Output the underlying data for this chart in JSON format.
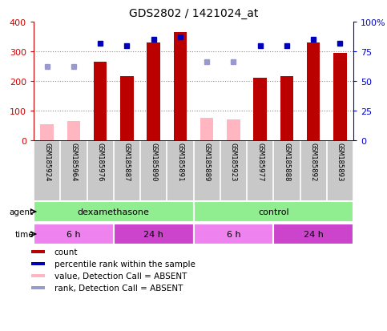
{
  "title": "GDS2802 / 1421024_at",
  "samples": [
    "GSM185924",
    "GSM185964",
    "GSM185976",
    "GSM185887",
    "GSM185890",
    "GSM185891",
    "GSM185889",
    "GSM185923",
    "GSM185977",
    "GSM185888",
    "GSM185892",
    "GSM185893"
  ],
  "count_values": [
    0,
    0,
    265,
    215,
    330,
    365,
    0,
    0,
    210,
    215,
    330,
    295
  ],
  "count_absent_values": [
    55,
    65,
    0,
    0,
    0,
    0,
    75,
    70,
    0,
    0,
    0,
    0
  ],
  "percentile_rank_pct": [
    null,
    null,
    82,
    80,
    85,
    87,
    null,
    null,
    80,
    80,
    85,
    82
  ],
  "rank_absent_pct": [
    62,
    62,
    null,
    null,
    null,
    null,
    66,
    66,
    null,
    null,
    null,
    null
  ],
  "ylim_left": [
    0,
    400
  ],
  "ylim_right": [
    0,
    100
  ],
  "yticks_left": [
    0,
    100,
    200,
    300,
    400
  ],
  "yticks_right": [
    0,
    25,
    50,
    75,
    100
  ],
  "ytick_labels_right": [
    "0",
    "25",
    "50",
    "75",
    "100%"
  ],
  "agent_groups": [
    {
      "label": "dexamethasone",
      "start": 0,
      "end": 6,
      "color": "#90EE90"
    },
    {
      "label": "control",
      "start": 6,
      "end": 12,
      "color": "#90EE90"
    }
  ],
  "time_groups": [
    {
      "label": "6 h",
      "start": 0,
      "end": 3,
      "color": "#EE82EE"
    },
    {
      "label": "24 h",
      "start": 3,
      "end": 6,
      "color": "#CC44CC"
    },
    {
      "label": "6 h",
      "start": 6,
      "end": 9,
      "color": "#EE82EE"
    },
    {
      "label": "24 h",
      "start": 9,
      "end": 12,
      "color": "#CC44CC"
    }
  ],
  "bar_color_count": "#BB0000",
  "bar_color_absent": "#FFB6C1",
  "dot_color_rank": "#0000BB",
  "dot_color_rank_absent": "#9999CC",
  "background_color": "#ffffff",
  "grid_color": "#888888",
  "sample_bg_color": "#C8C8C8",
  "legend_items": [
    {
      "color": "#BB0000",
      "label": "count"
    },
    {
      "color": "#0000BB",
      "label": "percentile rank within the sample"
    },
    {
      "color": "#FFB6C1",
      "label": "value, Detection Call = ABSENT"
    },
    {
      "color": "#9999CC",
      "label": "rank, Detection Call = ABSENT"
    }
  ]
}
